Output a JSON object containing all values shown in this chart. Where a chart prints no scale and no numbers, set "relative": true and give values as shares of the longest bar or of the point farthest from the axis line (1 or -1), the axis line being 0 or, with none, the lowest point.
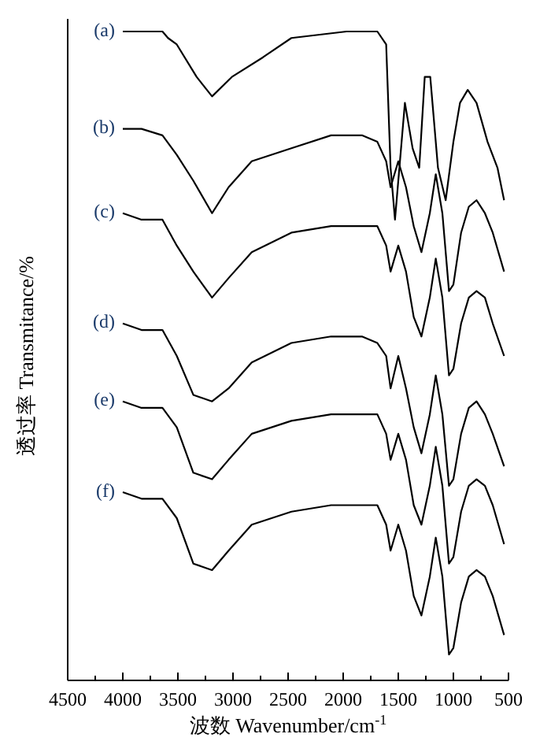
{
  "chart_data": {
    "type": "line",
    "relative": true,
    "xlabel": "波数 Wavenumber/cm$^{-1}$",
    "ylabel": "透过率 Transmitance/%",
    "xlim": [
      4500,
      500
    ],
    "xticks": [
      4500,
      {
        "value": 4250,
        "label": null
      },
      4000,
      {
        "value": 3750,
        "label": null
      },
      3500,
      {
        "value": 3250,
        "label": null
      },
      3000,
      {
        "value": 2750,
        "label": null
      },
      2500,
      {
        "value": 2250,
        "label": null
      },
      2000,
      {
        "value": 1750,
        "label": null
      },
      1500,
      {
        "value": 1250,
        "label": null
      },
      1000,
      {
        "value": 750,
        "label": null
      },
      500
    ],
    "x": [
      4000,
      3830,
      3640,
      3510,
      3360,
      3190,
      3040,
      2830,
      2470,
      2110,
      1830,
      1690,
      1610,
      1570,
      1500,
      1430,
      1360,
      1290,
      1214,
      1160,
      1100,
      1040,
      1000,
      930,
      860,
      790,
      714,
      643,
      540
    ],
    "grid": false,
    "marker": "none",
    "line_style": "solid",
    "series": [
      {
        "name": "(a)",
        "color": "#000000",
        "x": [
          4000,
          3640,
          3590,
          3510,
          3330,
          3190,
          3010,
          2730,
          2470,
          1970,
          1690,
          1610,
          1570,
          1530,
          1440,
          1370,
          1310,
          1260,
          1210,
          1140,
          1070,
          1000,
          940,
          870,
          790,
          690,
          600,
          540
        ],
        "values": [
          1.0,
          1.0,
          0.99,
          0.98,
          0.93,
          0.9,
          0.93,
          0.96,
          0.99,
          1.0,
          1.0,
          0.98,
          0.79,
          0.71,
          0.89,
          0.82,
          0.79,
          0.93,
          0.93,
          0.79,
          0.74,
          0.83,
          0.89,
          0.91,
          0.89,
          0.83,
          0.79,
          0.74
        ]
      },
      {
        "name": "(b)",
        "color": "#000000",
        "values": [
          0.85,
          0.85,
          0.84,
          0.81,
          0.77,
          0.72,
          0.76,
          0.8,
          0.82,
          0.84,
          0.84,
          0.83,
          0.8,
          0.76,
          0.8,
          0.76,
          0.7,
          0.66,
          0.72,
          0.78,
          0.72,
          0.6,
          0.61,
          0.69,
          0.73,
          0.74,
          0.72,
          0.69,
          0.63
        ]
      },
      {
        "name": "(c)",
        "color": "#000000",
        "values": [
          0.72,
          0.71,
          0.71,
          0.67,
          0.63,
          0.59,
          0.62,
          0.66,
          0.69,
          0.7,
          0.7,
          0.7,
          0.67,
          0.63,
          0.67,
          0.63,
          0.56,
          0.53,
          0.59,
          0.65,
          0.59,
          0.47,
          0.48,
          0.55,
          0.59,
          0.6,
          0.59,
          0.55,
          0.5
        ]
      },
      {
        "name": "(d)",
        "color": "#000000",
        "values": [
          0.55,
          0.54,
          0.54,
          0.5,
          0.44,
          0.43,
          0.45,
          0.49,
          0.52,
          0.53,
          0.53,
          0.52,
          0.5,
          0.45,
          0.5,
          0.45,
          0.39,
          0.35,
          0.41,
          0.47,
          0.41,
          0.3,
          0.31,
          0.38,
          0.42,
          0.43,
          0.41,
          0.38,
          0.33
        ]
      },
      {
        "name": "(e)",
        "color": "#000000",
        "values": [
          0.43,
          0.42,
          0.42,
          0.39,
          0.32,
          0.31,
          0.34,
          0.38,
          0.4,
          0.41,
          0.41,
          0.41,
          0.38,
          0.34,
          0.38,
          0.34,
          0.27,
          0.24,
          0.3,
          0.36,
          0.3,
          0.18,
          0.19,
          0.26,
          0.3,
          0.31,
          0.3,
          0.27,
          0.21
        ]
      },
      {
        "name": "(f)",
        "color": "#000000",
        "values": [
          0.29,
          0.28,
          0.28,
          0.25,
          0.18,
          0.17,
          0.2,
          0.24,
          0.26,
          0.27,
          0.27,
          0.27,
          0.24,
          0.2,
          0.24,
          0.2,
          0.13,
          0.1,
          0.16,
          0.22,
          0.16,
          0.04,
          0.05,
          0.12,
          0.16,
          0.17,
          0.16,
          0.13,
          0.07
        ]
      }
    ]
  }
}
